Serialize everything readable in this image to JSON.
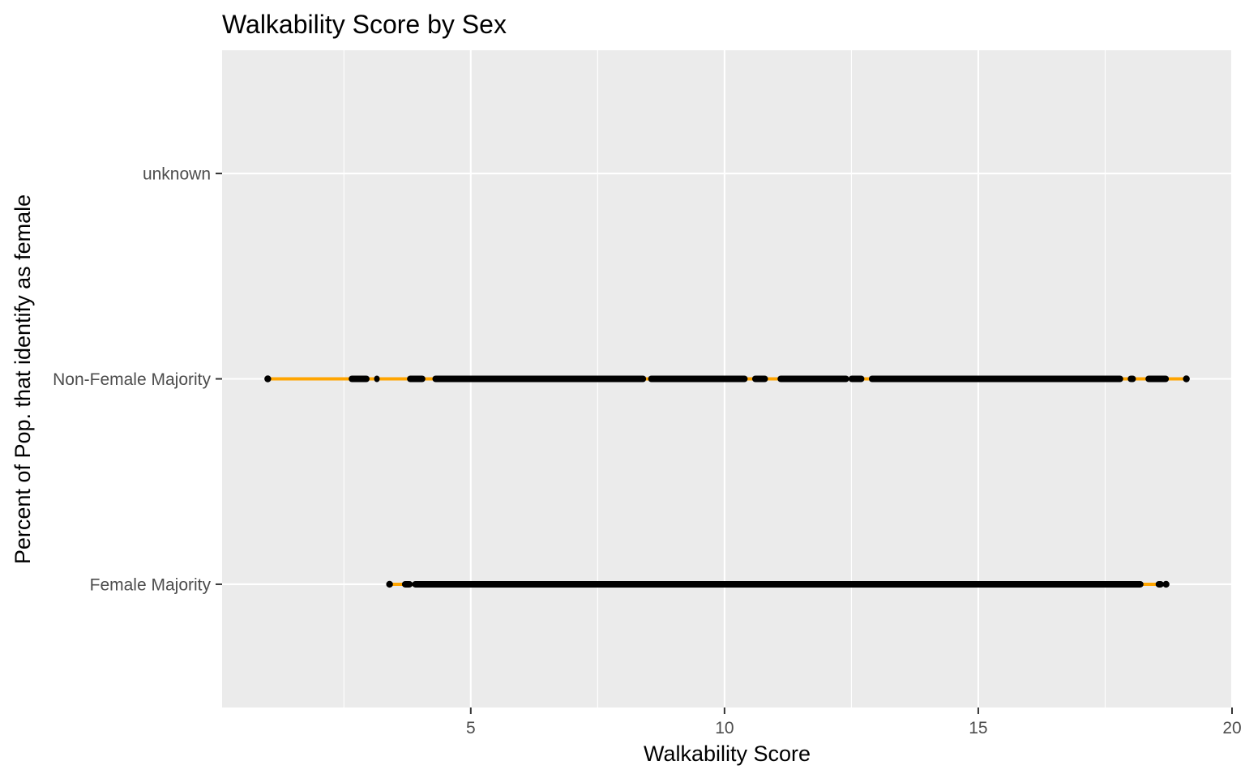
{
  "chart_data": {
    "type": "scatter",
    "title": "Walkability Score by Sex",
    "xlabel": "Walkability Score",
    "ylabel": "Percent of Pop. that identify as female",
    "xlim": [
      0.1,
      20
    ],
    "x_ticks": [
      5,
      10,
      15,
      20
    ],
    "x_tick_labels": [
      "5",
      "10",
      "15",
      "20"
    ],
    "categories": [
      "Female Majority",
      "Non-Female Majority",
      "unknown"
    ],
    "grid": true,
    "colors": {
      "panel": "#ebebeb",
      "grid": "#ffffff",
      "range_line": "#ffa500",
      "points": "#000000"
    },
    "series": [
      {
        "category": "Non-Female Majority",
        "range": [
          1.0,
          19.1
        ],
        "clusters": [
          [
            2.65,
            2.95
          ],
          [
            3.15,
            3.15
          ],
          [
            3.8,
            4.05
          ],
          [
            4.3,
            8.4
          ],
          [
            8.55,
            10.4
          ],
          [
            10.6,
            10.8
          ],
          [
            11.1,
            12.4
          ],
          [
            12.5,
            12.7
          ],
          [
            12.9,
            17.8
          ],
          [
            18.0,
            18.05
          ],
          [
            18.35,
            18.7
          ]
        ],
        "points": [
          1.0,
          19.1
        ]
      },
      {
        "category": "Female Majority",
        "range": [
          3.4,
          18.7
        ],
        "clusters": [
          [
            3.7,
            3.8
          ],
          [
            3.9,
            18.2
          ],
          [
            18.55,
            18.6
          ]
        ],
        "points": [
          3.4,
          18.7
        ]
      },
      {
        "category": "unknown",
        "range": null,
        "clusters": [],
        "points": []
      }
    ]
  }
}
